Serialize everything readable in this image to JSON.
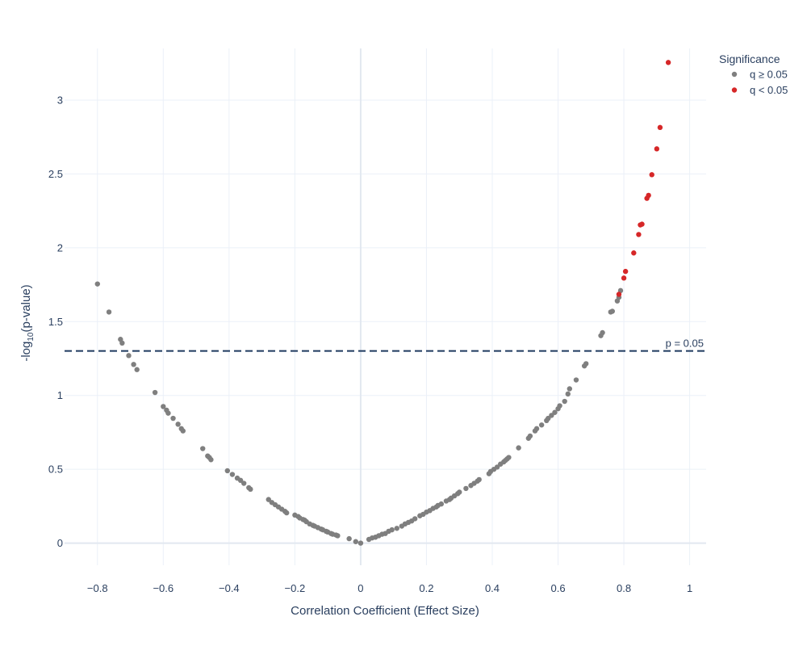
{
  "chart_data": {
    "type": "scatter",
    "xlabel": "Correlation Coefficient (Effect Size)",
    "ylabel_main": "-log",
    "ylabel_sub": "10",
    "ylabel_tail": "(p-value)",
    "xlim": [
      -0.9,
      1.05
    ],
    "ylim": [
      -0.15,
      3.35
    ],
    "x_ticks": [
      -0.8,
      -0.6,
      -0.4,
      -0.2,
      0,
      0.2,
      0.4,
      0.6,
      0.8,
      1
    ],
    "x_tick_labels": [
      "−0.8",
      "−0.6",
      "−0.4",
      "−0.2",
      "0",
      "0.2",
      "0.4",
      "0.6",
      "0.8",
      "1"
    ],
    "y_ticks": [
      0,
      0.5,
      1,
      1.5,
      2,
      2.5,
      3
    ],
    "y_tick_labels": [
      "0",
      "0.5",
      "1",
      "1.5",
      "2",
      "2.5",
      "3"
    ],
    "grid": true,
    "threshold": {
      "y": 1.301,
      "label": "p = 0.05",
      "color": "#1f3a5f"
    },
    "legend": {
      "title": "Significance",
      "placement": "top-right"
    },
    "series": [
      {
        "name": "q ≥ 0.05",
        "color": "#7f7f7f",
        "x": [
          -0.8,
          -0.765,
          -0.73,
          -0.725,
          -0.705,
          -0.69,
          -0.68,
          -0.625,
          -0.6,
          -0.59,
          -0.585,
          -0.57,
          -0.555,
          -0.545,
          -0.54,
          -0.48,
          -0.465,
          -0.46,
          -0.455,
          -0.405,
          -0.39,
          -0.375,
          -0.365,
          -0.355,
          -0.34,
          -0.335,
          -0.28,
          -0.27,
          -0.26,
          -0.25,
          -0.24,
          -0.23,
          -0.225,
          -0.2,
          -0.19,
          -0.185,
          -0.175,
          -0.17,
          -0.165,
          -0.155,
          -0.145,
          -0.14,
          -0.13,
          -0.12,
          -0.115,
          -0.105,
          -0.1,
          -0.09,
          -0.085,
          -0.075,
          -0.07,
          -0.035,
          -0.015,
          0.0,
          0.025,
          0.035,
          0.045,
          0.055,
          0.065,
          0.075,
          0.085,
          0.095,
          0.11,
          0.125,
          0.135,
          0.145,
          0.155,
          0.165,
          0.18,
          0.19,
          0.2,
          0.21,
          0.22,
          0.23,
          0.235,
          0.245,
          0.26,
          0.27,
          0.275,
          0.285,
          0.295,
          0.3,
          0.32,
          0.335,
          0.345,
          0.355,
          0.36,
          0.39,
          0.395,
          0.405,
          0.415,
          0.425,
          0.435,
          0.44,
          0.445,
          0.45,
          0.48,
          0.51,
          0.515,
          0.53,
          0.535,
          0.55,
          0.565,
          0.57,
          0.58,
          0.59,
          0.6,
          0.605,
          0.62,
          0.63,
          0.635,
          0.655,
          0.68,
          0.685,
          0.73,
          0.735,
          0.76,
          0.765,
          0.78,
          0.785,
          0.79
        ],
        "y": [
          1.755,
          1.565,
          1.38,
          1.355,
          1.27,
          1.21,
          1.175,
          1.02,
          0.925,
          0.9,
          0.88,
          0.845,
          0.805,
          0.775,
          0.76,
          0.64,
          0.59,
          0.58,
          0.565,
          0.49,
          0.465,
          0.44,
          0.425,
          0.405,
          0.375,
          0.365,
          0.295,
          0.275,
          0.26,
          0.245,
          0.23,
          0.215,
          0.205,
          0.19,
          0.18,
          0.17,
          0.16,
          0.155,
          0.145,
          0.13,
          0.12,
          0.115,
          0.105,
          0.095,
          0.09,
          0.08,
          0.075,
          0.065,
          0.06,
          0.055,
          0.05,
          0.03,
          0.01,
          0.0,
          0.025,
          0.035,
          0.04,
          0.05,
          0.06,
          0.065,
          0.08,
          0.09,
          0.1,
          0.115,
          0.13,
          0.14,
          0.15,
          0.165,
          0.185,
          0.195,
          0.21,
          0.22,
          0.235,
          0.245,
          0.255,
          0.265,
          0.285,
          0.295,
          0.305,
          0.32,
          0.335,
          0.345,
          0.37,
          0.39,
          0.405,
          0.42,
          0.43,
          0.47,
          0.485,
          0.5,
          0.515,
          0.535,
          0.55,
          0.56,
          0.57,
          0.58,
          0.645,
          0.71,
          0.725,
          0.76,
          0.775,
          0.8,
          0.83,
          0.845,
          0.865,
          0.885,
          0.91,
          0.93,
          0.96,
          1.01,
          1.045,
          1.105,
          1.2,
          1.215,
          1.405,
          1.425,
          1.565,
          1.57,
          1.64,
          1.665,
          1.71
        ]
      },
      {
        "name": "q < 0.05",
        "color": "#d62728",
        "x": [
          0.785,
          0.8,
          0.805,
          0.83,
          0.845,
          0.85,
          0.855,
          0.87,
          0.875,
          0.885,
          0.9,
          0.91,
          0.935
        ],
        "y": [
          1.685,
          1.795,
          1.84,
          1.965,
          2.09,
          2.155,
          2.16,
          2.335,
          2.355,
          2.495,
          2.67,
          2.815,
          3.255
        ]
      }
    ]
  }
}
